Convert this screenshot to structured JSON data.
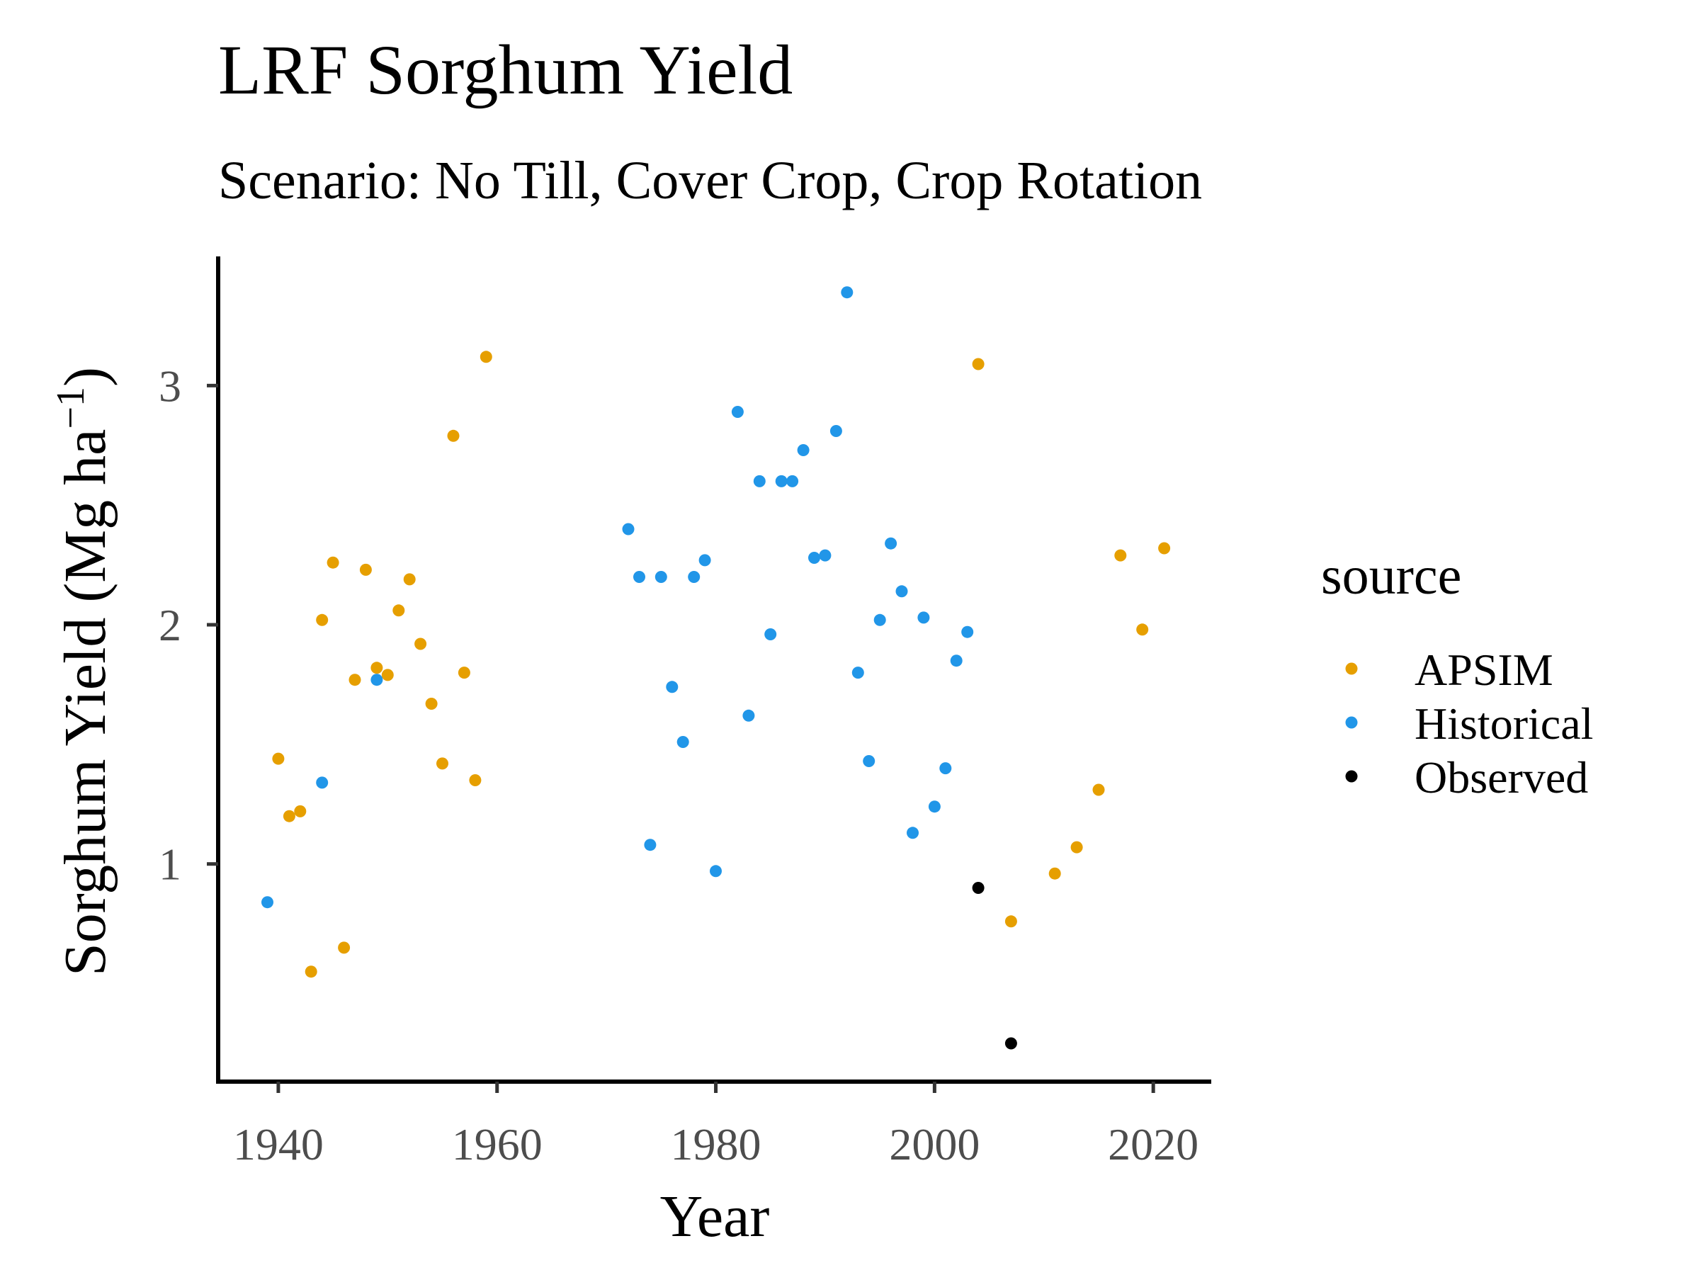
{
  "chart_data": {
    "type": "scatter",
    "title": "LRF Sorghum Yield",
    "subtitle": "Scenario: No Till, Cover Crop, Crop Rotation",
    "xlabel": "Year",
    "ylabel_main": "Sorghum Yield (Mg ha",
    "ylabel_sup": "−1",
    "ylabel_close": ")",
    "xlim": [
      1934.5,
      2025.3
    ],
    "ylim": [
      0.09,
      3.54
    ],
    "xticks": [
      1940,
      1960,
      1980,
      2000,
      2020
    ],
    "yticks": [
      1,
      2,
      3
    ],
    "grid": false,
    "legend": {
      "title": "source",
      "placement": "right"
    },
    "series": [
      {
        "name": "APSIM",
        "color": "#E69F00",
        "points": [
          [
            1940,
            1.44
          ],
          [
            1941,
            1.2
          ],
          [
            1942,
            1.22
          ],
          [
            1943,
            0.55
          ],
          [
            1944,
            2.02
          ],
          [
            1945,
            2.26
          ],
          [
            1946,
            0.65
          ],
          [
            1947,
            1.77
          ],
          [
            1948,
            2.23
          ],
          [
            1949,
            1.82
          ],
          [
            1950,
            1.79
          ],
          [
            1951,
            2.06
          ],
          [
            1952,
            2.19
          ],
          [
            1953,
            1.92
          ],
          [
            1954,
            1.67
          ],
          [
            1955,
            1.42
          ],
          [
            1956,
            2.79
          ],
          [
            1957,
            1.8
          ],
          [
            1958,
            1.35
          ],
          [
            1959,
            3.12
          ],
          [
            2004,
            3.09
          ],
          [
            2007,
            0.76
          ],
          [
            2011,
            0.96
          ],
          [
            2013,
            1.07
          ],
          [
            2015,
            1.31
          ],
          [
            2017,
            2.29
          ],
          [
            2019,
            1.98
          ],
          [
            2021,
            2.32
          ]
        ]
      },
      {
        "name": "Historical",
        "color": "#2196E8",
        "points": [
          [
            1939,
            0.84
          ],
          [
            1944,
            1.34
          ],
          [
            1949,
            1.77
          ],
          [
            1972,
            2.4
          ],
          [
            1973,
            2.2
          ],
          [
            1974,
            1.08
          ],
          [
            1975,
            2.2
          ],
          [
            1976,
            1.74
          ],
          [
            1977,
            1.51
          ],
          [
            1978,
            2.2
          ],
          [
            1979,
            2.27
          ],
          [
            1980,
            0.97
          ],
          [
            1982,
            2.89
          ],
          [
            1983,
            1.62
          ],
          [
            1984,
            2.6
          ],
          [
            1985,
            1.96
          ],
          [
            1986,
            2.6
          ],
          [
            1987,
            2.6
          ],
          [
            1988,
            2.73
          ],
          [
            1989,
            2.28
          ],
          [
            1990,
            2.29
          ],
          [
            1991,
            2.81
          ],
          [
            1992,
            3.39
          ],
          [
            1993,
            1.8
          ],
          [
            1994,
            1.43
          ],
          [
            1995,
            2.02
          ],
          [
            1996,
            2.34
          ],
          [
            1997,
            2.14
          ],
          [
            1998,
            1.13
          ],
          [
            1999,
            2.03
          ],
          [
            2000,
            1.24
          ],
          [
            2001,
            1.4
          ],
          [
            2002,
            1.85
          ],
          [
            2003,
            1.97
          ]
        ]
      },
      {
        "name": "Observed",
        "color": "#000000",
        "points": [
          [
            2004,
            0.9
          ],
          [
            2007,
            0.25
          ]
        ]
      }
    ]
  }
}
